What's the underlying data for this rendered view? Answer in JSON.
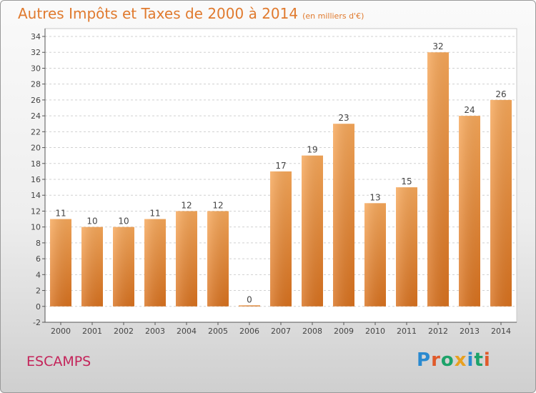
{
  "title": "Autres Impôts et Taxes de 2000 à 2014",
  "subtitle": "(en milliers d'€)",
  "commune": "ESCAMPS",
  "logo": {
    "text": "Proxiti",
    "letters": [
      {
        "ch": "P",
        "color": "#2a8ad0"
      },
      {
        "ch": "r",
        "color": "#e05a2a"
      },
      {
        "ch": "o",
        "color": "#1da36a"
      },
      {
        "ch": "x",
        "color": "#e8a020"
      },
      {
        "ch": "i",
        "color": "#2a8ad0"
      },
      {
        "ch": "t",
        "color": "#1da36a"
      },
      {
        "ch": "i",
        "color": "#e05a2a"
      }
    ]
  },
  "colors": {
    "bar_top": "#f7a85a",
    "bar_bottom": "#d9721f",
    "title": "#e07a2e",
    "commune": "#c4245a",
    "grid": "#d0d0d0"
  },
  "chart_data": {
    "type": "bar",
    "categories": [
      "2000",
      "2001",
      "2002",
      "2003",
      "2004",
      "2005",
      "2006",
      "2007",
      "2008",
      "2009",
      "2010",
      "2011",
      "2012",
      "2013",
      "2014"
    ],
    "values": [
      11,
      10,
      10,
      11,
      12,
      12,
      0,
      17,
      19,
      23,
      13,
      15,
      32,
      24,
      26
    ],
    "ylim": [
      -2,
      34
    ],
    "yticks": [
      -2,
      0,
      2,
      4,
      6,
      8,
      10,
      12,
      14,
      16,
      18,
      20,
      22,
      24,
      26,
      28,
      30,
      32,
      34
    ],
    "grid": true,
    "legend": "none"
  }
}
